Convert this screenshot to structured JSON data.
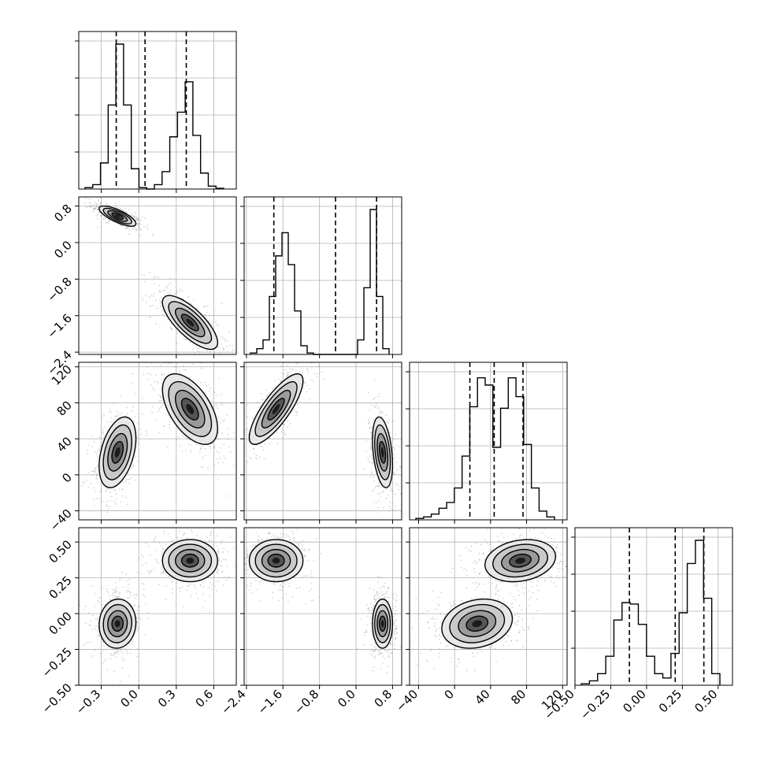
{
  "figure": {
    "type": "corner-plot",
    "description_free": true
  },
  "chart_data": {
    "type": "corner",
    "n_params": 4,
    "colors": {
      "hist_line": "#000000",
      "contour_line": "#000000",
      "grid": "#b0b0b0",
      "points": "#888888",
      "density_dark": "#111111",
      "density_mid": "#777777",
      "density_light": "#cfcfcf"
    },
    "grid": true,
    "params": [
      {
        "range": [
          -0.48,
          0.78
        ],
        "ticks": [
          -0.3,
          0.0,
          0.3,
          0.6
        ],
        "tick_labels": [
          "−0.3",
          "0.0",
          "0.3",
          "0.6"
        ],
        "quantiles": [
          -0.18,
          0.05,
          0.38
        ],
        "hist": [
          0.01,
          0.03,
          0.18,
          0.58,
          1.0,
          0.58,
          0.14,
          0.01,
          0.0,
          0.03,
          0.12,
          0.36,
          0.53,
          0.74,
          0.37,
          0.11,
          0.02,
          0.005
        ],
        "modes": [
          {
            "mean": -0.17,
            "sd": 0.06,
            "weight": 1
          },
          {
            "mean": 0.41,
            "sd": 0.09,
            "weight": 1
          }
        ]
      },
      {
        "range": [
          -2.45,
          1.0
        ],
        "ticks": [
          -2.4,
          -1.6,
          -0.8,
          0.0,
          0.8
        ],
        "tick_labels": [
          "−2.4",
          "−1.6",
          "−0.8",
          "0.0",
          "0.8"
        ],
        "quantiles": [
          -1.8,
          -0.45,
          0.45
        ],
        "hist": [
          0.01,
          0.04,
          0.1,
          0.4,
          0.68,
          0.84,
          0.62,
          0.3,
          0.06,
          0.01,
          0.0,
          0.0,
          0.0,
          0.0,
          0.0,
          0.0,
          0.0,
          0.1,
          0.46,
          1.0,
          0.4,
          0.04
        ],
        "modes": [
          {
            "mean": 0.6,
            "sd": 0.09,
            "weight": 1
          },
          {
            "mean": -1.7,
            "sd": 0.24,
            "weight": 1
          }
        ]
      },
      {
        "range": [
          -50,
          125
        ],
        "ticks": [
          -40,
          0,
          40,
          80,
          120
        ],
        "tick_labels": [
          "−40",
          "0",
          "40",
          "80",
          "120"
        ],
        "quantiles": [
          17,
          44,
          76
        ],
        "hist": [
          0.01,
          0.02,
          0.04,
          0.08,
          0.12,
          0.22,
          0.44,
          0.78,
          0.98,
          0.93,
          0.5,
          0.77,
          0.98,
          0.85,
          0.52,
          0.22,
          0.06,
          0.02
        ],
        "modes": [
          {
            "mean": 22,
            "sd": 14,
            "weight": 1
          },
          {
            "mean": 70,
            "sd": 14,
            "weight": 1
          }
        ]
      },
      {
        "range": [
          -0.5,
          0.6
        ],
        "ticks": [
          -0.5,
          -0.25,
          0.0,
          0.25,
          0.5
        ],
        "tick_labels": [
          "−0.50",
          "−0.25",
          "0.00",
          "0.25",
          "0.50"
        ],
        "quantiles": [
          -0.12,
          0.2,
          0.4
        ],
        "hist": [
          0.01,
          0.03,
          0.08,
          0.2,
          0.45,
          0.57,
          0.56,
          0.42,
          0.2,
          0.08,
          0.05,
          0.22,
          0.5,
          0.84,
          1.0,
          0.6,
          0.08
        ],
        "modes": [
          {
            "mean": -0.08,
            "sd": 0.06,
            "weight": 1
          },
          {
            "mean": 0.38,
            "sd": 0.06,
            "weight": 1
          }
        ]
      }
    ],
    "clusters": [
      {
        "means": [
          -0.17,
          0.58,
          25,
          -0.07
        ],
        "sds": [
          0.06,
          0.09,
          16,
          0.07
        ]
      },
      {
        "means": [
          0.41,
          -1.75,
          73,
          0.37
        ],
        "sds": [
          0.09,
          0.24,
          16,
          0.06
        ]
      }
    ],
    "correlations": {
      "0-1": [
        -0.75,
        -0.75
      ],
      "0-2": [
        0.4,
        -0.55
      ],
      "1-2": [
        -0.35,
        0.8
      ],
      "0-3": [
        0.05,
        0.0
      ],
      "1-3": [
        0.0,
        0.0
      ],
      "2-3": [
        0.2,
        0.2
      ]
    }
  }
}
